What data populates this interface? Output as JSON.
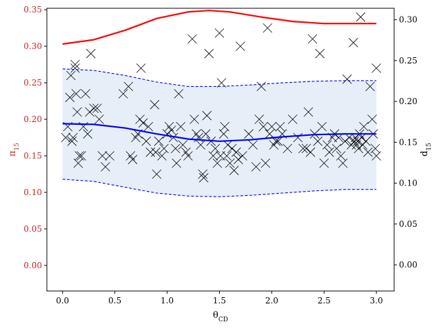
{
  "chart_data": {
    "type": "line",
    "xlabel": "θ_CD",
    "ylabel_left": "π_15",
    "ylabel_right": "d_15",
    "xlim": [
      -0.15,
      3.17
    ],
    "ylim_left": [
      -0.035,
      0.352
    ],
    "ylim_right": [
      -0.032,
      0.314
    ],
    "x_ticks": [
      "0.0",
      "0.5",
      "1.0",
      "1.5",
      "2.0",
      "2.5",
      "3.0"
    ],
    "x_tick_values": [
      0.0,
      0.5,
      1.0,
      1.5,
      2.0,
      2.5,
      3.0
    ],
    "y_left_ticks": [
      "0.00",
      "0.05",
      "0.10",
      "0.15",
      "0.20",
      "0.25",
      "0.30",
      "0.35"
    ],
    "y_left_tick_values": [
      0.0,
      0.05,
      0.1,
      0.15,
      0.2,
      0.25,
      0.3,
      0.35
    ],
    "y_right_ticks": [
      "0.00",
      "0.05",
      "0.10",
      "0.15",
      "0.20",
      "0.25",
      "0.30"
    ],
    "y_right_tick_values": [
      0.0,
      0.05,
      0.1,
      0.15,
      0.2,
      0.25,
      0.3
    ],
    "grid": false,
    "colors": {
      "red_line": "#ff0000",
      "blue_line": "#0000ff",
      "band_fill": "#e6eff8",
      "marker": "#000000",
      "left_axis_label": "#cc2222"
    },
    "series": [
      {
        "axis": "left",
        "style": "solid-red",
        "x": [
          0,
          0.3,
          0.6,
          0.9,
          1.2,
          1.4,
          1.6,
          1.9,
          2.2,
          2.5,
          2.8,
          3.0
        ],
        "y": [
          0.303,
          0.309,
          0.322,
          0.338,
          0.347,
          0.349,
          0.347,
          0.34,
          0.334,
          0.331,
          0.331,
          0.331
        ]
      },
      {
        "axis": "left",
        "style": "solid-blue",
        "x": [
          0,
          0.3,
          0.6,
          0.9,
          1.2,
          1.5,
          1.8,
          2.1,
          2.4,
          2.7,
          3.0
        ],
        "y": [
          0.194,
          0.193,
          0.188,
          0.18,
          0.173,
          0.17,
          0.172,
          0.176,
          0.179,
          0.18,
          0.18
        ]
      },
      {
        "axis": "left",
        "style": "dashed-blue-upper",
        "x": [
          0,
          0.3,
          0.6,
          0.9,
          1.2,
          1.5,
          1.8,
          2.1,
          2.4,
          2.7,
          3.0
        ],
        "y": [
          0.269,
          0.267,
          0.26,
          0.251,
          0.245,
          0.245,
          0.247,
          0.25,
          0.252,
          0.253,
          0.253
        ]
      },
      {
        "axis": "left",
        "style": "dashed-blue-lower",
        "x": [
          0,
          0.3,
          0.6,
          0.9,
          1.2,
          1.5,
          1.8,
          2.1,
          2.4,
          2.7,
          3.0
        ],
        "y": [
          0.118,
          0.115,
          0.107,
          0.099,
          0.095,
          0.094,
          0.096,
          0.099,
          0.102,
          0.104,
          0.104
        ]
      },
      {
        "axis": "left",
        "style": "x-markers",
        "points": [
          [
            0.03,
            0.175
          ],
          [
            0.05,
            0.19
          ],
          [
            0.07,
            0.23
          ],
          [
            0.08,
            0.26
          ],
          [
            0.09,
            0.17
          ],
          [
            0.1,
            0.175
          ],
          [
            0.12,
            0.27
          ],
          [
            0.12,
            0.275
          ],
          [
            0.13,
            0.235
          ],
          [
            0.14,
            0.21
          ],
          [
            0.15,
            0.14
          ],
          [
            0.16,
            0.15
          ],
          [
            0.18,
            0.15
          ],
          [
            0.2,
            0.19
          ],
          [
            0.22,
            0.235
          ],
          [
            0.24,
            0.18
          ],
          [
            0.26,
            0.21
          ],
          [
            0.27,
            0.29
          ],
          [
            0.3,
            0.215
          ],
          [
            0.33,
            0.215
          ],
          [
            0.35,
            0.2
          ],
          [
            0.38,
            0.15
          ],
          [
            0.41,
            0.135
          ],
          [
            0.45,
            0.15
          ],
          [
            0.58,
            0.235
          ],
          [
            0.63,
            0.245
          ],
          [
            0.65,
            0.15
          ],
          [
            0.67,
            0.145
          ],
          [
            0.7,
            0.175
          ],
          [
            0.72,
            0.18
          ],
          [
            0.74,
            0.2
          ],
          [
            0.75,
            0.27
          ],
          [
            0.77,
            0.195
          ],
          [
            0.8,
            0.17
          ],
          [
            0.82,
            0.19
          ],
          [
            0.84,
            0.155
          ],
          [
            0.88,
            0.22
          ],
          [
            0.89,
            0.155
          ],
          [
            0.9,
            0.125
          ],
          [
            0.92,
            0.17
          ],
          [
            0.95,
            0.15
          ],
          [
            0.97,
            0.16
          ],
          [
            1.0,
            0.18
          ],
          [
            1.02,
            0.19
          ],
          [
            1.04,
            0.185
          ],
          [
            1.06,
            0.175
          ],
          [
            1.08,
            0.16
          ],
          [
            1.09,
            0.14
          ],
          [
            1.11,
            0.235
          ],
          [
            1.13,
            0.19
          ],
          [
            1.15,
            0.165
          ],
          [
            1.18,
            0.155
          ],
          [
            1.2,
            0.15
          ],
          [
            1.24,
            0.31
          ],
          [
            1.26,
            0.2
          ],
          [
            1.28,
            0.18
          ],
          [
            1.3,
            0.175
          ],
          [
            1.32,
            0.165
          ],
          [
            1.34,
            0.125
          ],
          [
            1.35,
            0.12
          ],
          [
            1.37,
            0.18
          ],
          [
            1.38,
            0.205
          ],
          [
            1.4,
            0.29
          ],
          [
            1.42,
            0.17
          ],
          [
            1.44,
            0.15
          ],
          [
            1.46,
            0.16
          ],
          [
            1.48,
            0.14
          ],
          [
            1.5,
            0.318
          ],
          [
            1.51,
            0.15
          ],
          [
            1.52,
            0.25
          ],
          [
            1.54,
            0.18
          ],
          [
            1.55,
            0.19
          ],
          [
            1.57,
            0.15
          ],
          [
            1.58,
            0.165
          ],
          [
            1.6,
            0.14
          ],
          [
            1.62,
            0.16
          ],
          [
            1.64,
            0.13
          ],
          [
            1.66,
            0.155
          ],
          [
            1.68,
            0.145
          ],
          [
            1.7,
            0.3
          ],
          [
            1.72,
            0.15
          ],
          [
            1.78,
            0.18
          ],
          [
            1.82,
            0.165
          ],
          [
            1.85,
            0.135
          ],
          [
            1.88,
            0.2
          ],
          [
            1.9,
            0.245
          ],
          [
            1.92,
            0.19
          ],
          [
            1.94,
            0.14
          ],
          [
            1.96,
            0.325
          ],
          [
            1.98,
            0.18
          ],
          [
            2.0,
            0.19
          ],
          [
            2.02,
            0.165
          ],
          [
            2.04,
            0.17
          ],
          [
            2.06,
            0.17
          ],
          [
            2.08,
            0.19
          ],
          [
            2.1,
            0.18
          ],
          [
            2.15,
            0.16
          ],
          [
            2.2,
            0.2
          ],
          [
            2.25,
            0.175
          ],
          [
            2.3,
            0.16
          ],
          [
            2.33,
            0.16
          ],
          [
            2.35,
            0.21
          ],
          [
            2.37,
            0.155
          ],
          [
            2.39,
            0.31
          ],
          [
            2.41,
            0.18
          ],
          [
            2.44,
            0.17
          ],
          [
            2.46,
            0.29
          ],
          [
            2.48,
            0.19
          ],
          [
            2.5,
            0.14
          ],
          [
            2.53,
            0.165
          ],
          [
            2.55,
            0.155
          ],
          [
            2.58,
            0.175
          ],
          [
            2.6,
            0.18
          ],
          [
            2.62,
            0.16
          ],
          [
            2.64,
            0.175
          ],
          [
            2.66,
            0.15
          ],
          [
            2.68,
            0.14
          ],
          [
            2.7,
            0.17
          ],
          [
            2.72,
            0.255
          ],
          [
            2.74,
            0.175
          ],
          [
            2.76,
            0.165
          ],
          [
            2.78,
            0.305
          ],
          [
            2.79,
            0.17
          ],
          [
            2.8,
            0.175
          ],
          [
            2.81,
            0.165
          ],
          [
            2.82,
            0.17
          ],
          [
            2.83,
            0.16
          ],
          [
            2.84,
            0.18
          ],
          [
            2.85,
            0.34
          ],
          [
            2.86,
            0.175
          ],
          [
            2.87,
            0.165
          ],
          [
            2.88,
            0.19
          ],
          [
            2.9,
            0.17
          ],
          [
            2.92,
            0.155
          ],
          [
            2.94,
            0.245
          ],
          [
            2.96,
            0.2
          ],
          [
            2.97,
            0.18
          ],
          [
            2.99,
            0.16
          ],
          [
            3.0,
            0.27
          ],
          [
            3.0,
            0.15
          ]
        ]
      }
    ]
  }
}
